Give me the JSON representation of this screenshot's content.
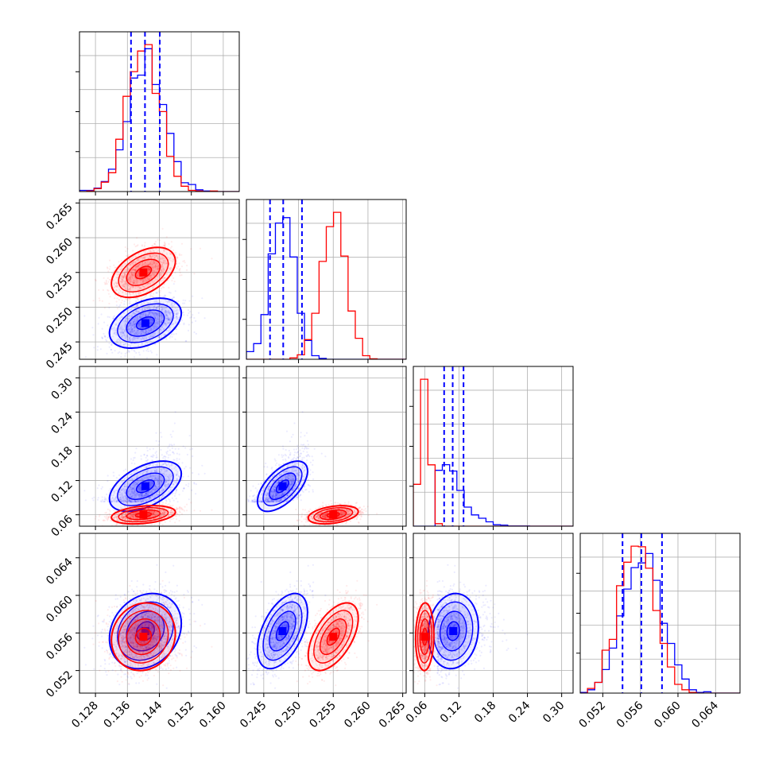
{
  "chart_data": {
    "type": "corner",
    "params": [
      {
        "ticks": [
          "0.128",
          "0.136",
          "0.144",
          "0.152",
          "0.160"
        ],
        "lim": [
          0.124,
          0.164
        ]
      },
      {
        "ticks": [
          "0.245",
          "0.250",
          "0.255",
          "0.260",
          "0.265"
        ],
        "lim": [
          0.2425,
          0.2655
        ]
      },
      {
        "ticks": [
          "0.06",
          "0.12",
          "0.18",
          "0.24",
          "0.30"
        ],
        "lim": [
          0.04,
          0.32
        ]
      },
      {
        "ticks": [
          "0.052",
          "0.056",
          "0.060",
          "0.064"
        ],
        "lim": [
          0.0496,
          0.0666
        ]
      }
    ],
    "series": [
      {
        "color": "#0000ff",
        "quantiles": [
          [
            0.1369,
            0.1404,
            0.1441
          ],
          [
            0.2459,
            0.2478,
            0.2505
          ],
          [
            0.094,
            0.109,
            0.128
          ],
          [
            0.0541,
            0.0561,
            0.0583
          ]
        ],
        "mean": [
          0.1405,
          0.2477,
          0.11,
          0.0562
        ],
        "sd": [
          0.0045,
          0.0018,
          0.022,
          0.002
        ],
        "corr": [
          [
            1,
            0.4,
            0.5,
            0.2
          ],
          [
            0.4,
            1,
            0.6,
            0.5
          ],
          [
            0.5,
            0.6,
            1,
            0.1
          ],
          [
            0.2,
            0.5,
            0.1,
            1
          ]
        ]
      },
      {
        "color": "#ff0000",
        "mean": [
          0.14,
          0.255,
          0.06,
          0.0556
        ],
        "sd": [
          0.004,
          0.0018,
          0.008,
          0.0018
        ],
        "corr": [
          [
            1,
            0.45,
            0.3,
            0.1
          ],
          [
            0.45,
            1,
            0.35,
            0.55
          ],
          [
            0.3,
            0.35,
            1,
            0.05
          ],
          [
            0.1,
            0.55,
            0.05,
            1
          ]
        ]
      }
    ],
    "grid": true
  }
}
